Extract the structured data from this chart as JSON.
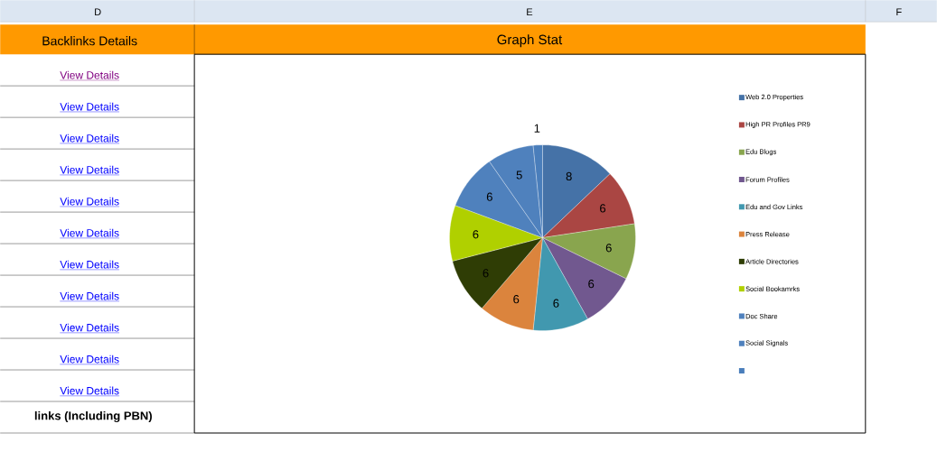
{
  "chart_data": {
    "type": "pie",
    "title": "Graph Stat",
    "categories": [
      "Web 2.0 Properties",
      "High PR Profiles PR9",
      "Edu Blogs",
      "Forum Profiles",
      "Edu and Gov Links",
      "Press Release",
      "Article Directories",
      "Social Bookamrks",
      "Doc Share",
      "Social Signals",
      null
    ],
    "values": [
      8,
      6,
      6,
      6,
      6,
      6,
      6,
      6,
      6,
      5,
      1
    ],
    "colors": [
      "#4572a7",
      "#aa4643",
      "#89a54e",
      "#71588f",
      "#4198af",
      "#db843d",
      "#2f3d05",
      "#b0d000",
      "#4f81bd",
      "#4f81bd",
      "#4a7ebb"
    ],
    "data_labels": true,
    "legend": "right",
    "annotations": [
      "D",
      "E",
      "F",
      "Backlinks Details",
      "View Details",
      "View Details",
      "View Details",
      "View Details",
      "View Details",
      "View Details",
      "View Details",
      "View Details",
      "View Details",
      "View Details",
      "View Details",
      "links (Including PBN)"
    ]
  }
}
